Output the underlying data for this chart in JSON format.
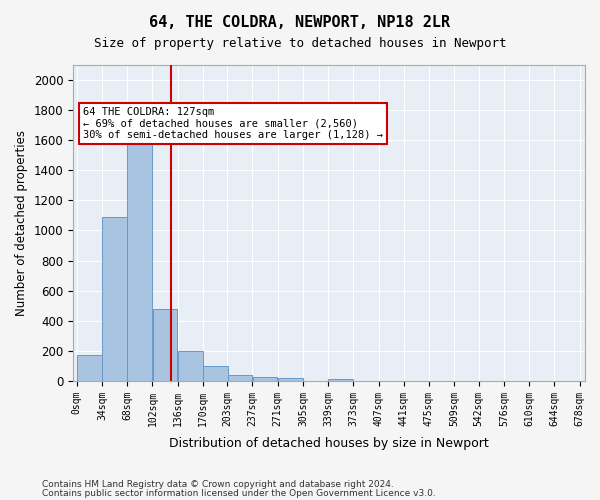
{
  "title": "64, THE COLDRA, NEWPORT, NP18 2LR",
  "subtitle": "Size of property relative to detached houses in Newport",
  "xlabel": "Distribution of detached houses by size in Newport",
  "ylabel": "Number of detached properties",
  "footer_line1": "Contains HM Land Registry data © Crown copyright and database right 2024.",
  "footer_line2": "Contains public sector information licensed under the Open Government Licence v3.0.",
  "bin_labels": [
    "0sqm",
    "34sqm",
    "68sqm",
    "102sqm",
    "136sqm",
    "170sqm",
    "203sqm",
    "237sqm",
    "271sqm",
    "305sqm",
    "339sqm",
    "373sqm",
    "407sqm",
    "441sqm",
    "475sqm",
    "509sqm",
    "542sqm",
    "576sqm",
    "610sqm",
    "644sqm",
    "678sqm"
  ],
  "bar_values": [
    170,
    1090,
    1630,
    480,
    200,
    100,
    40,
    25,
    20,
    0,
    15,
    0,
    0,
    0,
    0,
    0,
    0,
    0,
    0,
    0
  ],
  "bar_color": "#a8c4e0",
  "bar_edge_color": "#6699cc",
  "background_color": "#e8eef5",
  "grid_color": "#ffffff",
  "property_line_x": 127,
  "property_line_color": "#cc0000",
  "ylim": [
    0,
    2100
  ],
  "yticks": [
    0,
    200,
    400,
    600,
    800,
    1000,
    1200,
    1400,
    1600,
    1800,
    2000
  ],
  "annotation_text": "64 THE COLDRA: 127sqm\n← 69% of detached houses are smaller (2,560)\n30% of semi-detached houses are larger (1,128) →",
  "annotation_box_color": "#ffffff",
  "annotation_border_color": "#cc0000",
  "bin_width": 34,
  "bin_starts": [
    0,
    34,
    68,
    102,
    136,
    170,
    203,
    237,
    271,
    305,
    339,
    373,
    407,
    441,
    475,
    509,
    542,
    576,
    610,
    644
  ],
  "x_tick_positions": [
    0,
    34,
    68,
    102,
    136,
    170,
    203,
    237,
    271,
    305,
    339,
    373,
    407,
    441,
    475,
    509,
    542,
    576,
    610,
    644,
    678
  ]
}
